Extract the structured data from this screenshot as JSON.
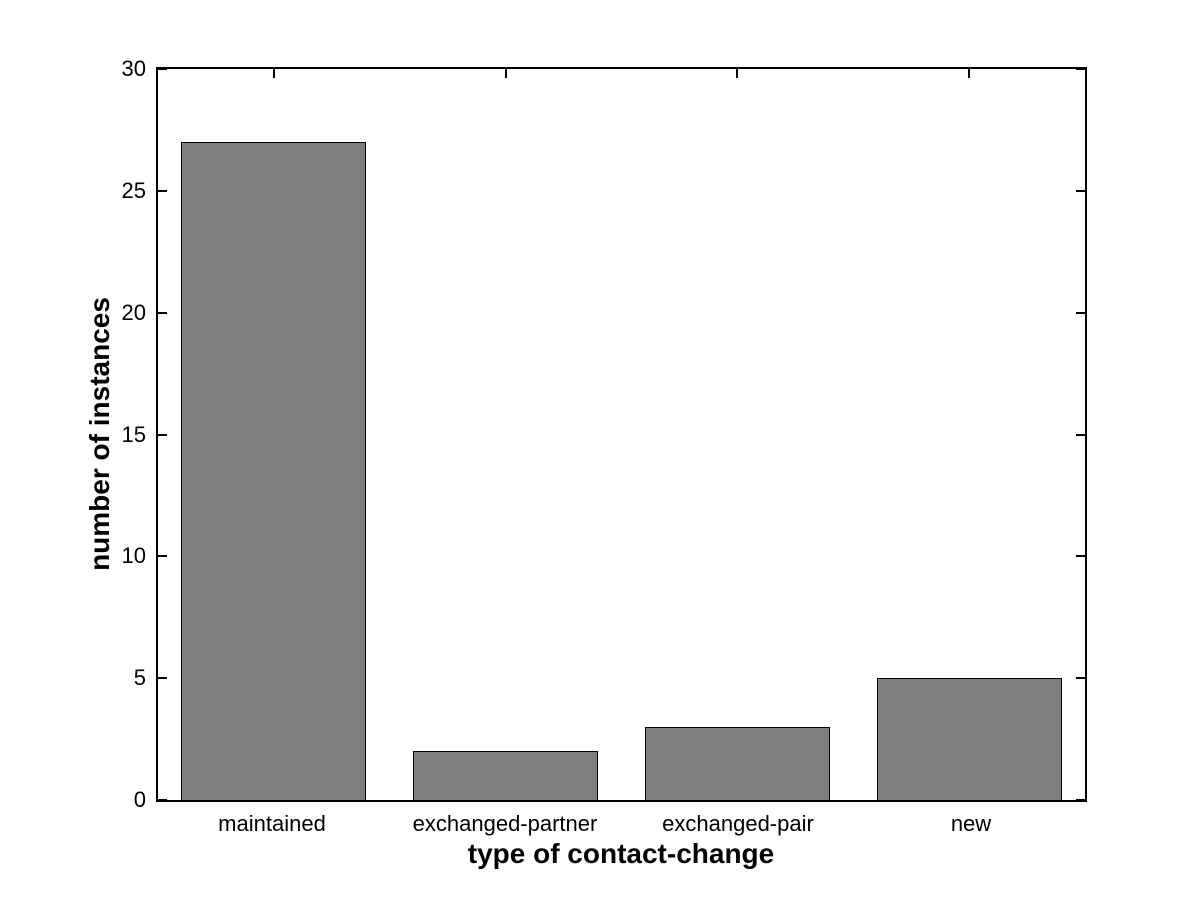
{
  "chart_data": {
    "type": "bar",
    "categories": [
      "maintained",
      "exchanged-partner",
      "exchanged-pair",
      "new"
    ],
    "values": [
      27,
      2,
      3,
      5
    ],
    "xlabel": "type of contact-change",
    "ylabel": "number of instances",
    "ylim": [
      0,
      30
    ],
    "yticks": [
      0,
      5,
      10,
      15,
      20,
      25,
      30
    ],
    "grid": false,
    "legend": "none",
    "bar_color": "#7f7f7f",
    "bar_edge_color": "#000000",
    "axis_color": "#000000",
    "background_color": "#ffffff",
    "bar_width_fraction": 0.8
  }
}
